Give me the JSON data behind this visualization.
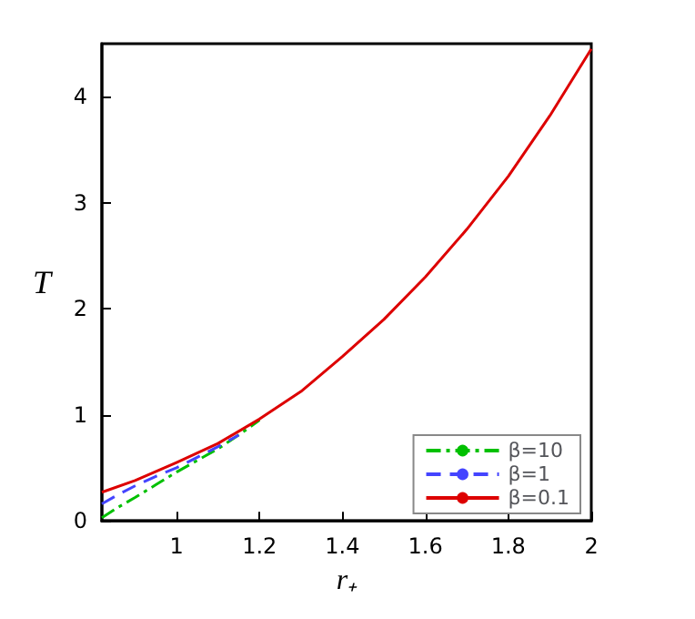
{
  "chart_data": {
    "type": "line",
    "xlabel": "r₊",
    "ylabel": "T",
    "xlim": [
      0.82,
      2
    ],
    "xticks": [
      1,
      1.2,
      1.4,
      1.6,
      1.8,
      2
    ],
    "ylim": [
      0,
      4.5
    ],
    "yticks": [
      0,
      1,
      2,
      3,
      4
    ],
    "grid": false,
    "legend": "bottom right",
    "marker": "none",
    "series": [
      {
        "name": "β=10",
        "color": "#00c000",
        "line_style": "dashdot",
        "x": [
          0.82,
          0.86,
          0.9,
          0.95,
          1,
          1.05,
          1.1,
          1.15,
          1.2
        ],
        "values": [
          0.03,
          0.13,
          0.22,
          0.34,
          0.46,
          0.57,
          0.68,
          0.81,
          0.95
        ]
      },
      {
        "name": "β=1",
        "color": "#4444ff",
        "line_style": "dashed",
        "x": [
          0.82,
          0.86,
          0.9,
          0.95,
          1,
          1.05,
          1.1,
          1.15
        ],
        "values": [
          0.16,
          0.25,
          0.33,
          0.42,
          0.5,
          0.6,
          0.7,
          0.81
        ]
      },
      {
        "name": "β=0.1",
        "color": "#dd0000",
        "line_style": "solid",
        "x": [
          0.82,
          0.9,
          1,
          1.1,
          1.2,
          1.3,
          1.4,
          1.5,
          1.6,
          1.7,
          1.8,
          1.9,
          2
        ],
        "values": [
          0.27,
          0.38,
          0.55,
          0.73,
          0.96,
          1.22,
          1.55,
          1.9,
          2.3,
          2.75,
          3.25,
          3.82,
          4.45
        ]
      }
    ]
  }
}
